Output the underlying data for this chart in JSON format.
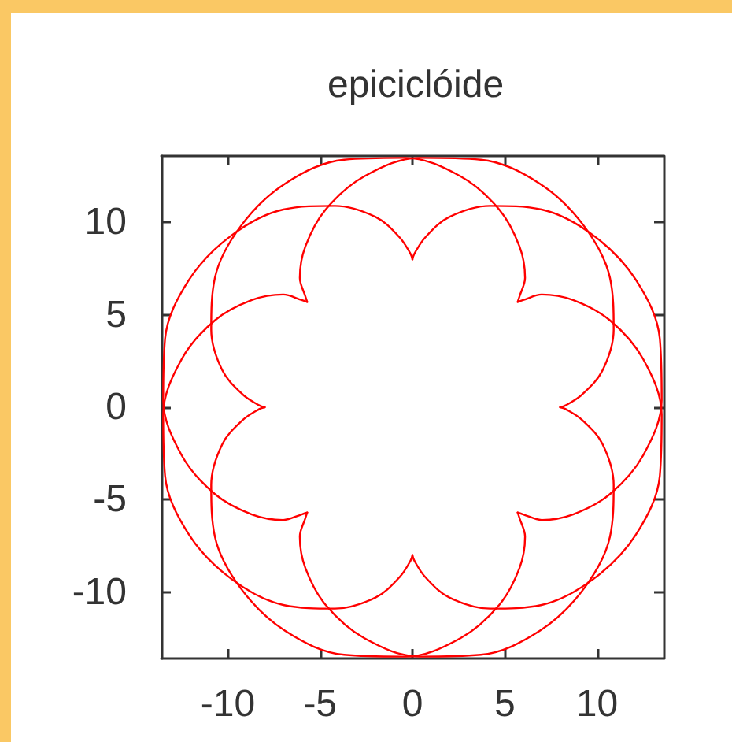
{
  "chart_data": {
    "type": "line",
    "title": "epiciclóide",
    "color": "#ff0000",
    "series": [
      {
        "x": [
          8.0,
          8.3,
          9.2,
          10.3,
          10.9,
          10.7,
          9.3,
          6.9,
          3.7,
          0.4,
          -2.6,
          -4.7,
          -5.8,
          -6.1,
          -5.8,
          -5.7
        ],
        "values": [
          0.0,
          0.1,
          0.7,
          2.0,
          4.2,
          7.0,
          9.8,
          12.1,
          13.4,
          13.5,
          12.5,
          10.7,
          8.7,
          7.0,
          6.0,
          5.7
        ]
      },
      {
        "x": [
          -5.7,
          -6.0,
          -7.0,
          -8.7,
          -10.7,
          -12.5,
          -13.5,
          -13.4,
          -12.1,
          -9.8,
          -7.0,
          -4.2,
          -2.0,
          -0.7,
          -0.1,
          0.0
        ],
        "values": [
          5.7,
          5.8,
          6.1,
          5.8,
          4.7,
          2.6,
          -0.4,
          -3.7,
          -6.9,
          -9.3,
          -10.7,
          -10.9,
          -10.3,
          -9.2,
          -8.3,
          -8.0
        ]
      },
      {
        "x": [
          0.0,
          0.1,
          0.7,
          2.0,
          4.2,
          7.0,
          9.8,
          12.1,
          13.4,
          13.5,
          12.5,
          10.7,
          8.7,
          7.0,
          6.0,
          5.7
        ],
        "values": [
          -8.0,
          -8.3,
          -9.2,
          -10.3,
          -10.9,
          -10.7,
          -9.3,
          -6.9,
          -3.7,
          -0.4,
          2.6,
          4.7,
          5.8,
          6.1,
          5.8,
          5.7
        ]
      },
      {
        "x": [
          5.7,
          5.8,
          6.1,
          5.8,
          4.7,
          2.6,
          -0.4,
          -3.7,
          -6.9,
          -9.3,
          -10.7,
          -10.9,
          -10.3,
          -9.2,
          -8.3,
          -8.0
        ],
        "values": [
          5.7,
          6.0,
          7.0,
          8.7,
          10.7,
          12.5,
          13.5,
          13.4,
          12.1,
          9.8,
          7.0,
          4.2,
          2.0,
          0.7,
          0.1,
          0.0
        ]
      },
      {
        "x": [
          -8.0,
          -8.3,
          -9.2,
          -10.3,
          -10.9,
          -10.7,
          -9.3,
          -6.9,
          -3.7,
          -0.4,
          2.6,
          4.7,
          5.8,
          6.1,
          5.8,
          5.7
        ],
        "values": [
          0.0,
          -0.1,
          -0.7,
          -2.0,
          -4.2,
          -7.0,
          -9.8,
          -12.1,
          -13.4,
          -13.5,
          -12.5,
          -10.7,
          -8.7,
          -7.0,
          -6.0,
          -5.7
        ]
      },
      {
        "x": [
          5.7,
          6.0,
          7.0,
          8.7,
          10.7,
          12.5,
          13.5,
          13.4,
          12.1,
          9.8,
          7.0,
          4.2,
          2.0,
          0.7,
          0.1,
          0.0
        ],
        "values": [
          -5.7,
          -5.8,
          -6.1,
          -5.8,
          -4.7,
          -2.6,
          0.4,
          3.7,
          6.9,
          9.3,
          10.7,
          10.9,
          10.3,
          9.2,
          8.3,
          8.0
        ]
      },
      {
        "x": [
          0.0,
          -0.1,
          -0.7,
          -2.0,
          -4.2,
          -7.0,
          -9.8,
          -12.1,
          -13.4,
          -13.5,
          -12.5,
          -10.7,
          -8.7,
          -7.0,
          -6.0,
          -5.7
        ],
        "values": [
          8.0,
          8.3,
          9.2,
          10.3,
          10.9,
          10.7,
          9.3,
          6.9,
          3.7,
          0.4,
          -2.6,
          -4.7,
          -5.8,
          -6.1,
          -5.8,
          -5.7
        ]
      },
      {
        "x": [
          -5.7,
          -5.8,
          -6.1,
          -5.8,
          -4.7,
          -2.6,
          0.4,
          3.7,
          6.9,
          9.3,
          10.7,
          10.9,
          10.3,
          9.2,
          8.3,
          8.0
        ],
        "values": [
          -5.7,
          -6.0,
          -7.0,
          -8.7,
          -10.7,
          -12.5,
          -13.5,
          -13.4,
          -12.1,
          -9.8,
          -7.0,
          -4.2,
          -2.0,
          -0.7,
          -0.1,
          0.0
        ]
      }
    ],
    "xlim": [
      -13.6,
      13.6
    ],
    "ylim": [
      -13.6,
      13.6
    ],
    "xticks": [
      -10,
      -5,
      0,
      5,
      10
    ],
    "yticks": [
      -10,
      -5,
      0,
      5,
      10
    ]
  }
}
